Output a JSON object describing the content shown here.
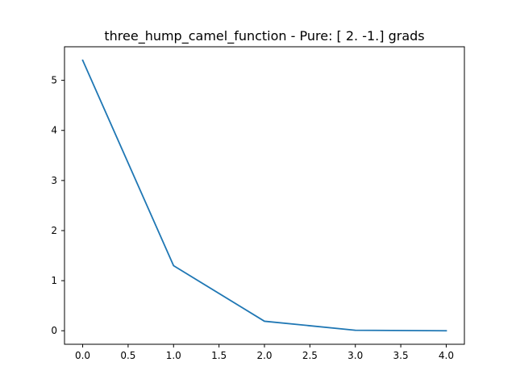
{
  "chart_data": {
    "type": "line",
    "title": "three_hump_camel_function - Pure: [ 2. -1.] grads",
    "xlabel": "",
    "ylabel": "",
    "xlim": [
      -0.2,
      4.2
    ],
    "ylim": [
      -0.27,
      5.67
    ],
    "grid": false,
    "x_ticks": [
      0.0,
      0.5,
      1.0,
      1.5,
      2.0,
      2.5,
      3.0,
      3.5,
      4.0
    ],
    "x_tick_labels": [
      "0.0",
      "0.5",
      "1.0",
      "1.5",
      "2.0",
      "2.5",
      "3.0",
      "3.5",
      "4.0"
    ],
    "y_ticks": [
      0,
      1,
      2,
      3,
      4,
      5
    ],
    "y_tick_labels": [
      "0",
      "1",
      "2",
      "3",
      "4",
      "5"
    ],
    "series": [
      {
        "color": "#1f77b4",
        "x": [
          0,
          1,
          2,
          3,
          4
        ],
        "y": [
          5.4,
          1.3,
          0.19,
          0.01,
          0.0
        ]
      }
    ]
  }
}
